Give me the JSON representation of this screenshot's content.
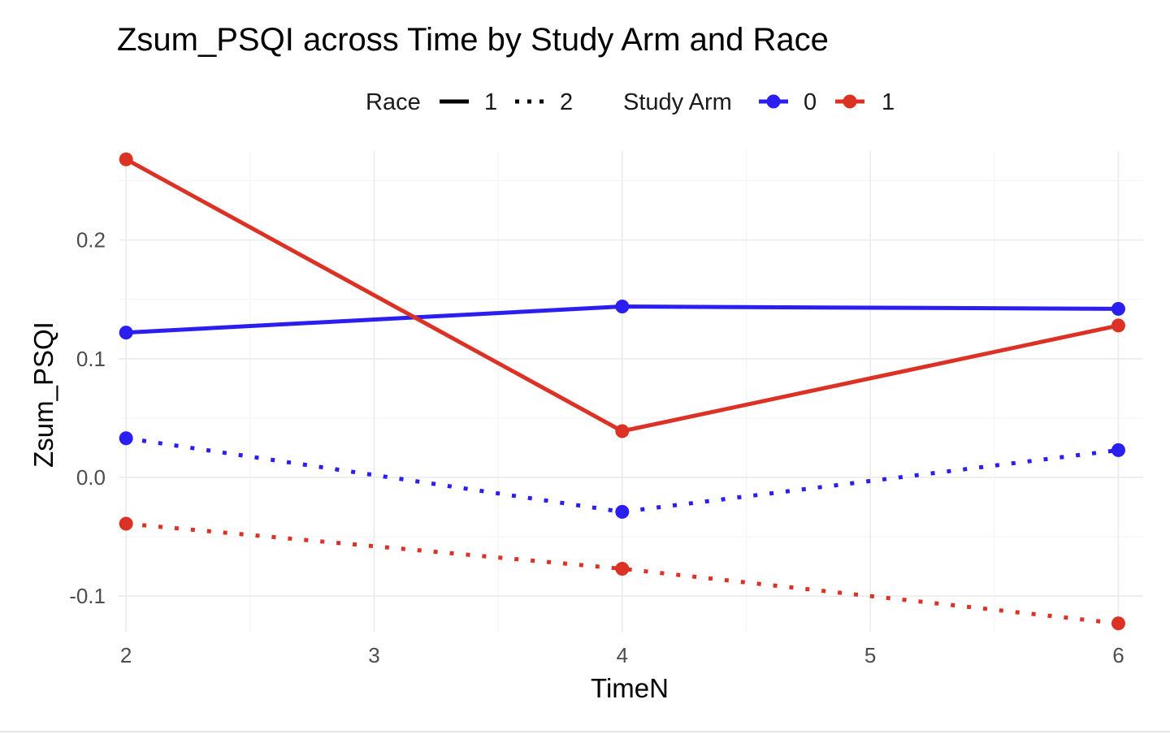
{
  "chart_data": {
    "type": "line",
    "title": "Zsum_PSQI across Time by Study Arm and Race",
    "xlabel": "TimeN",
    "ylabel": "Zsum_PSQI",
    "x_ticks": [
      2,
      3,
      4,
      5,
      6
    ],
    "y_ticks": [
      0.2,
      0.1,
      0.0,
      -0.1
    ],
    "y_tick_labels": [
      "0.2",
      "0.1",
      "0.0",
      "-0.1"
    ],
    "xlim": [
      1.97,
      6.1
    ],
    "ylim": [
      -0.13,
      0.275
    ],
    "grid": true,
    "legend": {
      "placement": "top",
      "race_title": "Race",
      "race_levels": [
        {
          "label": "1",
          "linetype": "solid"
        },
        {
          "label": "2",
          "linetype": "dotted"
        }
      ],
      "arm_title": "Study Arm",
      "arm_levels": [
        {
          "label": "0",
          "color": "#2a1ff0"
        },
        {
          "label": "1",
          "color": "#dc3226"
        }
      ]
    },
    "series": [
      {
        "study_arm": "0",
        "race": "1",
        "color": "#2a1ff0",
        "linetype": "solid",
        "x": [
          2,
          4,
          6
        ],
        "y": [
          0.122,
          0.144,
          0.142
        ]
      },
      {
        "study_arm": "1",
        "race": "1",
        "color": "#dc3226",
        "linetype": "solid",
        "x": [
          2,
          4,
          6
        ],
        "y": [
          0.268,
          0.039,
          0.128
        ]
      },
      {
        "study_arm": "0",
        "race": "2",
        "color": "#2a1ff0",
        "linetype": "dotted",
        "x": [
          2,
          4,
          6
        ],
        "y": [
          0.033,
          -0.029,
          0.023
        ]
      },
      {
        "study_arm": "1",
        "race": "2",
        "color": "#dc3226",
        "linetype": "dotted",
        "x": [
          2,
          4,
          6
        ],
        "y": [
          -0.039,
          -0.077,
          -0.123
        ]
      }
    ]
  }
}
